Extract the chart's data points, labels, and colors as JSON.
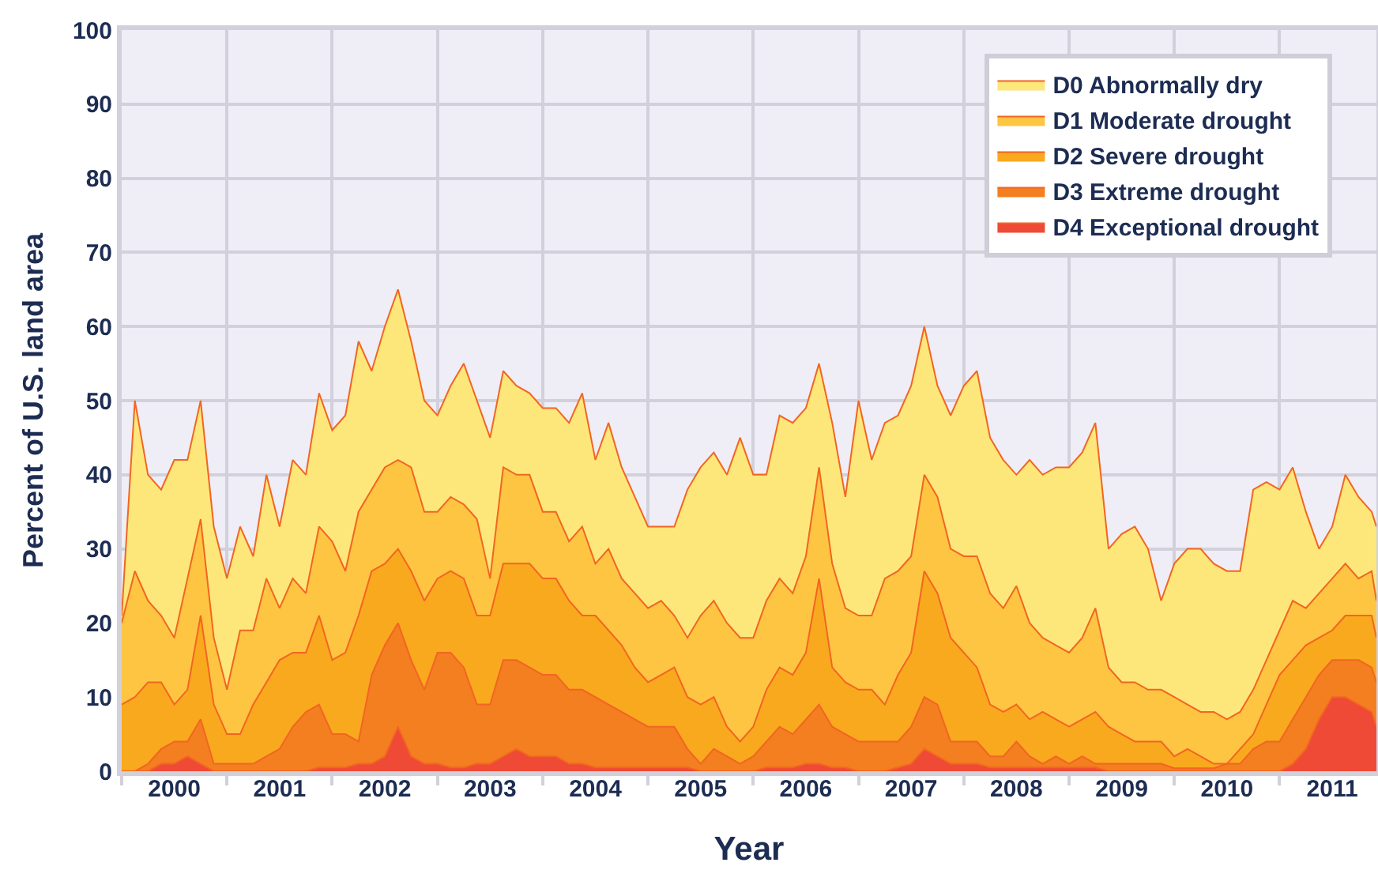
{
  "chart_data": {
    "type": "area",
    "xlabel": "Year",
    "ylabel": "Percent of U.S. land area",
    "x": [
      2000,
      2000.125,
      2000.25,
      2000.375,
      2000.5,
      2000.625,
      2000.75,
      2000.875,
      2001,
      2001.125,
      2001.25,
      2001.375,
      2001.5,
      2001.625,
      2001.75,
      2001.875,
      2002,
      2002.125,
      2002.25,
      2002.375,
      2002.5,
      2002.625,
      2002.75,
      2002.875,
      2003,
      2003.125,
      2003.25,
      2003.375,
      2003.5,
      2003.625,
      2003.75,
      2003.875,
      2004,
      2004.125,
      2004.25,
      2004.375,
      2004.5,
      2004.625,
      2004.75,
      2004.875,
      2005,
      2005.125,
      2005.25,
      2005.375,
      2005.5,
      2005.625,
      2005.75,
      2005.875,
      2006,
      2006.125,
      2006.25,
      2006.375,
      2006.5,
      2006.625,
      2006.75,
      2006.875,
      2007,
      2007.125,
      2007.25,
      2007.375,
      2007.5,
      2007.625,
      2007.75,
      2007.875,
      2008,
      2008.125,
      2008.25,
      2008.375,
      2008.5,
      2008.625,
      2008.75,
      2008.875,
      2009,
      2009.125,
      2009.25,
      2009.375,
      2009.5,
      2009.625,
      2009.75,
      2009.875,
      2010,
      2010.125,
      2010.25,
      2010.375,
      2010.5,
      2010.625,
      2010.75,
      2010.875,
      2011,
      2011.125,
      2011.25,
      2011.375,
      2011.5,
      2011.625,
      2011.75,
      2011.875,
      2011.92
    ],
    "series": [
      {
        "name": "D0 Abnormally dry",
        "color": "#fee77a",
        "values": [
          21,
          50,
          40,
          38,
          42,
          42,
          50,
          33,
          26,
          33,
          29,
          40,
          33,
          42,
          40,
          51,
          46,
          48,
          58,
          54,
          60,
          65,
          58,
          50,
          48,
          52,
          55,
          50,
          45,
          54,
          52,
          51,
          49,
          49,
          47,
          51,
          42,
          47,
          41,
          37,
          33,
          33,
          33,
          38,
          41,
          43,
          40,
          45,
          40,
          40,
          48,
          47,
          49,
          55,
          47,
          37,
          50,
          42,
          47,
          48,
          52,
          60,
          52,
          48,
          52,
          54,
          45,
          42,
          40,
          42,
          40,
          41,
          41,
          43,
          47,
          30,
          32,
          33,
          30,
          23,
          28,
          30,
          30,
          28,
          27,
          27,
          38,
          39,
          38,
          41,
          35,
          30,
          33,
          40,
          37,
          35,
          33
        ]
      },
      {
        "name": "D1 Moderate drought",
        "color": "#fdc542",
        "values": [
          20,
          27,
          23,
          21,
          18,
          26,
          34,
          18,
          11,
          19,
          19,
          26,
          22,
          26,
          24,
          33,
          31,
          27,
          35,
          38,
          41,
          42,
          41,
          35,
          35,
          37,
          36,
          34,
          26,
          41,
          40,
          40,
          35,
          35,
          31,
          33,
          28,
          30,
          26,
          24,
          22,
          23,
          21,
          18,
          21,
          23,
          20,
          18,
          18,
          23,
          26,
          24,
          29,
          41,
          28,
          22,
          21,
          21,
          26,
          27,
          29,
          40,
          37,
          30,
          29,
          29,
          24,
          22,
          25,
          20,
          18,
          17,
          16,
          18,
          22,
          14,
          12,
          12,
          11,
          11,
          10,
          9,
          8,
          8,
          7,
          8,
          11,
          15,
          19,
          23,
          22,
          24,
          26,
          28,
          26,
          27,
          23
        ]
      },
      {
        "name": "D2 Severe drought",
        "color": "#f9a91e",
        "values": [
          9,
          10,
          12,
          12,
          9,
          11,
          21,
          9,
          5,
          5,
          9,
          12,
          15,
          16,
          16,
          21,
          15,
          16,
          21,
          27,
          28,
          30,
          27,
          23,
          26,
          27,
          26,
          21,
          21,
          28,
          28,
          28,
          26,
          26,
          23,
          21,
          21,
          19,
          17,
          14,
          12,
          13,
          14,
          10,
          9,
          10,
          6,
          4,
          6,
          11,
          14,
          13,
          16,
          26,
          14,
          12,
          11,
          11,
          9,
          13,
          16,
          27,
          24,
          18,
          16,
          14,
          9,
          8,
          9,
          7,
          8,
          7,
          6,
          7,
          8,
          6,
          5,
          4,
          4,
          4,
          2,
          3,
          2,
          1,
          1,
          3,
          5,
          9,
          13,
          15,
          17,
          18,
          19,
          21,
          21,
          21,
          18
        ]
      },
      {
        "name": "D3 Extreme drought",
        "color": "#f37f20",
        "values": [
          0,
          0,
          1,
          3,
          4,
          4,
          7,
          1,
          1,
          1,
          1,
          2,
          3,
          6,
          8,
          9,
          5,
          5,
          4,
          13,
          17,
          20,
          15,
          11,
          16,
          16,
          14,
          9,
          9,
          15,
          15,
          14,
          13,
          13,
          11,
          11,
          10,
          9,
          8,
          7,
          6,
          6,
          6,
          3,
          1,
          3,
          2,
          1,
          2,
          4,
          6,
          5,
          7,
          9,
          6,
          5,
          4,
          4,
          4,
          4,
          6,
          10,
          9,
          4,
          4,
          4,
          2,
          2,
          4,
          2,
          1,
          2,
          1,
          2,
          1,
          1,
          1,
          1,
          1,
          1,
          0.4,
          0.4,
          0.4,
          0.4,
          1,
          1,
          3,
          4,
          4,
          7,
          10,
          13,
          15,
          15,
          15,
          14,
          12
        ]
      },
      {
        "name": "D4 Exceptional drought",
        "color": "#ee4a35",
        "values": [
          0,
          0,
          0,
          1,
          1,
          2,
          1,
          0,
          0,
          0,
          0,
          0,
          0,
          0,
          0,
          0.5,
          0.5,
          0.5,
          1,
          1,
          2,
          6,
          2,
          1,
          1,
          0.5,
          0.5,
          1,
          1,
          2,
          3,
          2,
          2,
          2,
          1,
          1,
          0.5,
          0.5,
          0.5,
          0.5,
          0.5,
          0.5,
          0.5,
          0.5,
          0,
          0,
          0,
          0,
          0,
          0.5,
          0.5,
          0.5,
          1,
          1,
          0.5,
          0.5,
          0,
          0,
          0,
          0.5,
          1,
          3,
          2,
          1,
          1,
          1,
          0.5,
          0.5,
          0.5,
          0.5,
          0.5,
          0.5,
          0.5,
          0.5,
          0.5,
          0,
          0,
          0,
          0,
          0,
          0,
          0,
          0,
          0,
          0,
          0,
          0,
          0,
          0,
          1,
          3,
          7,
          10,
          10,
          9,
          8,
          6
        ]
      }
    ],
    "xlim": [
      2000,
      2011.92
    ],
    "xticks": [
      {
        "value": 2000,
        "label": null
      },
      {
        "value": 2000.5,
        "label": "2000"
      },
      {
        "value": 2001,
        "label": null
      },
      {
        "value": 2001.5,
        "label": "2001"
      },
      {
        "value": 2002,
        "label": null
      },
      {
        "value": 2002.5,
        "label": "2002"
      },
      {
        "value": 2003,
        "label": null
      },
      {
        "value": 2003.5,
        "label": "2003"
      },
      {
        "value": 2004,
        "label": null
      },
      {
        "value": 2004.5,
        "label": "2004"
      },
      {
        "value": 2005,
        "label": null
      },
      {
        "value": 2005.5,
        "label": "2005"
      },
      {
        "value": 2006,
        "label": null
      },
      {
        "value": 2006.5,
        "label": "2006"
      },
      {
        "value": 2007,
        "label": null
      },
      {
        "value": 2007.5,
        "label": "2007"
      },
      {
        "value": 2008,
        "label": null
      },
      {
        "value": 2008.5,
        "label": "2008"
      },
      {
        "value": 2009,
        "label": null
      },
      {
        "value": 2009.5,
        "label": "2009"
      },
      {
        "value": 2010,
        "label": null
      },
      {
        "value": 2010.5,
        "label": "2010"
      },
      {
        "value": 2011,
        "label": null
      },
      {
        "value": 2011.5,
        "label": "2011"
      }
    ],
    "ylim": [
      0,
      100
    ],
    "yticks": [
      0,
      10,
      20,
      30,
      40,
      50,
      60,
      70,
      80,
      90,
      100
    ],
    "grid": true,
    "legend": "top right"
  }
}
